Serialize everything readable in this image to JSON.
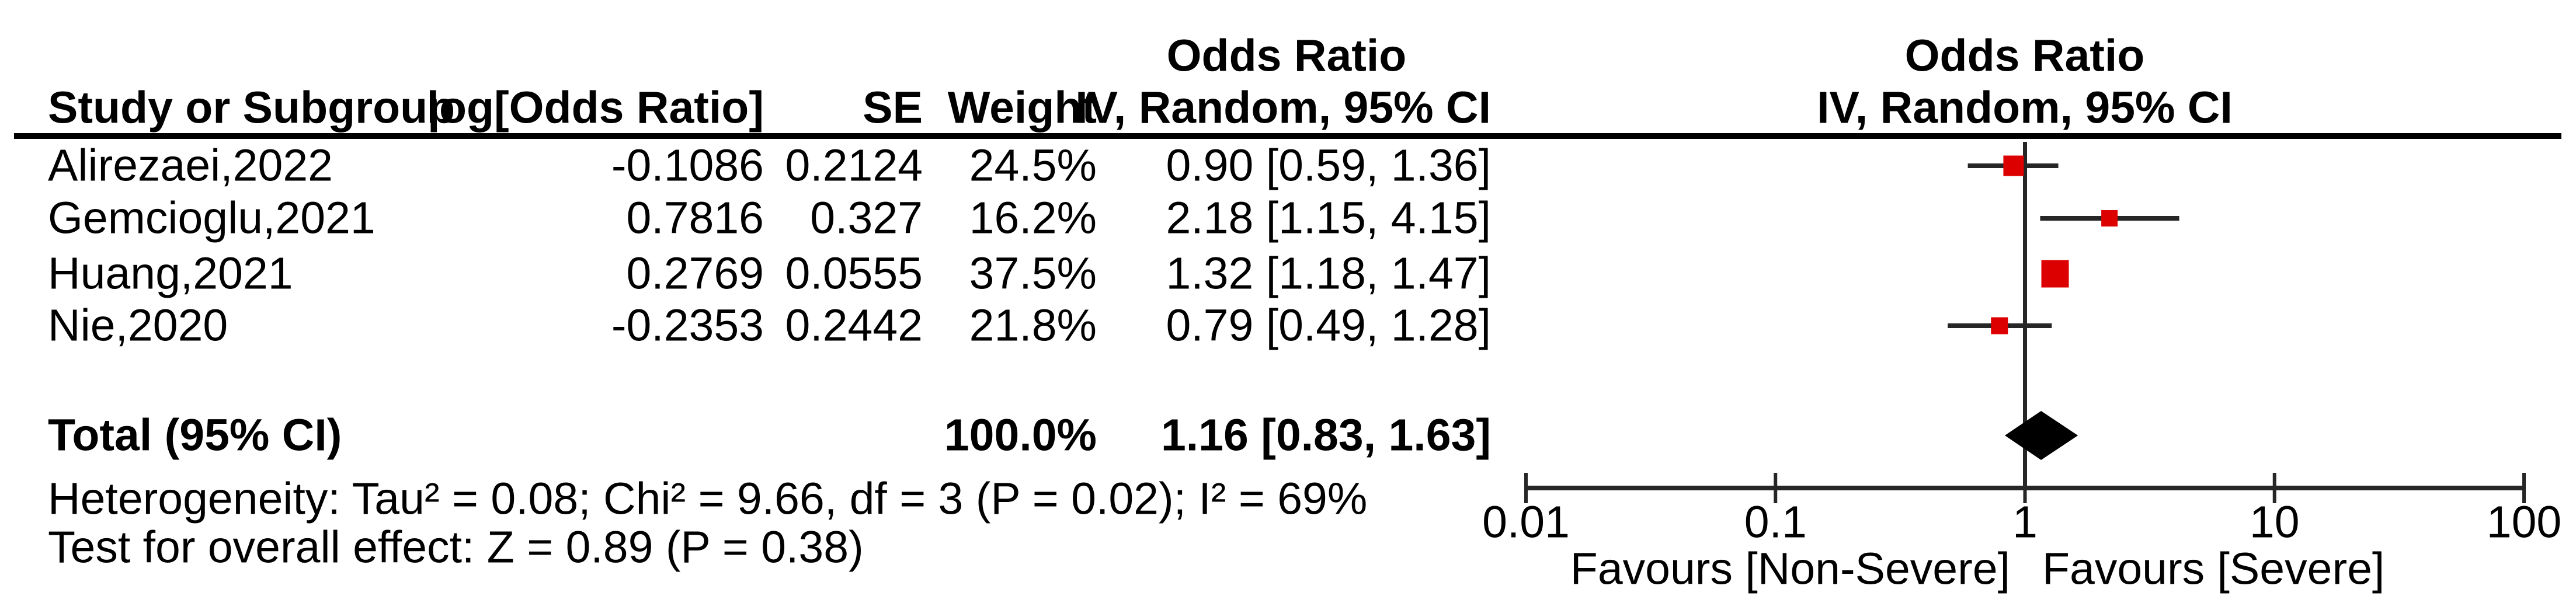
{
  "chart_data": {
    "type": "forest",
    "effect_measure": "Odds Ratio",
    "header": {
      "study": "Study or Subgroup",
      "log_or": "log[Odds Ratio]",
      "se": "SE",
      "weight": "Weight",
      "effect_line1": "Odds Ratio",
      "effect_line2": "IV, Random, 95% CI"
    },
    "studies": [
      {
        "name": "Alirezaei,2022",
        "log_or": "-0.1086",
        "se": "0.2124",
        "weight": "24.5%",
        "ci_text": "0.90 [0.59, 1.36]",
        "or": 0.9,
        "ci_low": 0.59,
        "ci_high": 1.36,
        "weight_pct": 24.5
      },
      {
        "name": "Gemcioglu,2021",
        "log_or": "0.7816",
        "se": "0.327",
        "weight": "16.2%",
        "ci_text": "2.18 [1.15, 4.15]",
        "or": 2.18,
        "ci_low": 1.15,
        "ci_high": 4.15,
        "weight_pct": 16.2
      },
      {
        "name": "Huang,2021",
        "log_or": "0.2769",
        "se": "0.0555",
        "weight": "37.5%",
        "ci_text": "1.32 [1.18, 1.47]",
        "or": 1.32,
        "ci_low": 1.18,
        "ci_high": 1.47,
        "weight_pct": 37.5
      },
      {
        "name": "Nie,2020",
        "log_or": "-0.2353",
        "se": "0.2442",
        "weight": "21.8%",
        "ci_text": "0.79 [0.49, 1.28]",
        "or": 0.79,
        "ci_low": 0.49,
        "ci_high": 1.28,
        "weight_pct": 21.8
      }
    ],
    "total": {
      "label": "Total (95% CI)",
      "weight": "100.0%",
      "ci_text": "1.16 [0.83, 1.63]",
      "or": 1.16,
      "ci_low": 0.83,
      "ci_high": 1.63
    },
    "heterogeneity": "Heterogeneity: Tau² = 0.08; Chi² = 9.66, df = 3 (P = 0.02); I² = 69%",
    "overall_effect": "Test for overall effect: Z = 0.89 (P = 0.38)",
    "axis": {
      "scale": "log",
      "min": 0.01,
      "max": 100,
      "ticks": [
        0.01,
        0.1,
        1,
        10,
        100
      ],
      "left_label": "Favours [Non-Severe]",
      "right_label": "Favours [Severe]"
    },
    "colors": {
      "marker": "#DD0000",
      "diamond": "#000000",
      "line": "#262626"
    }
  }
}
